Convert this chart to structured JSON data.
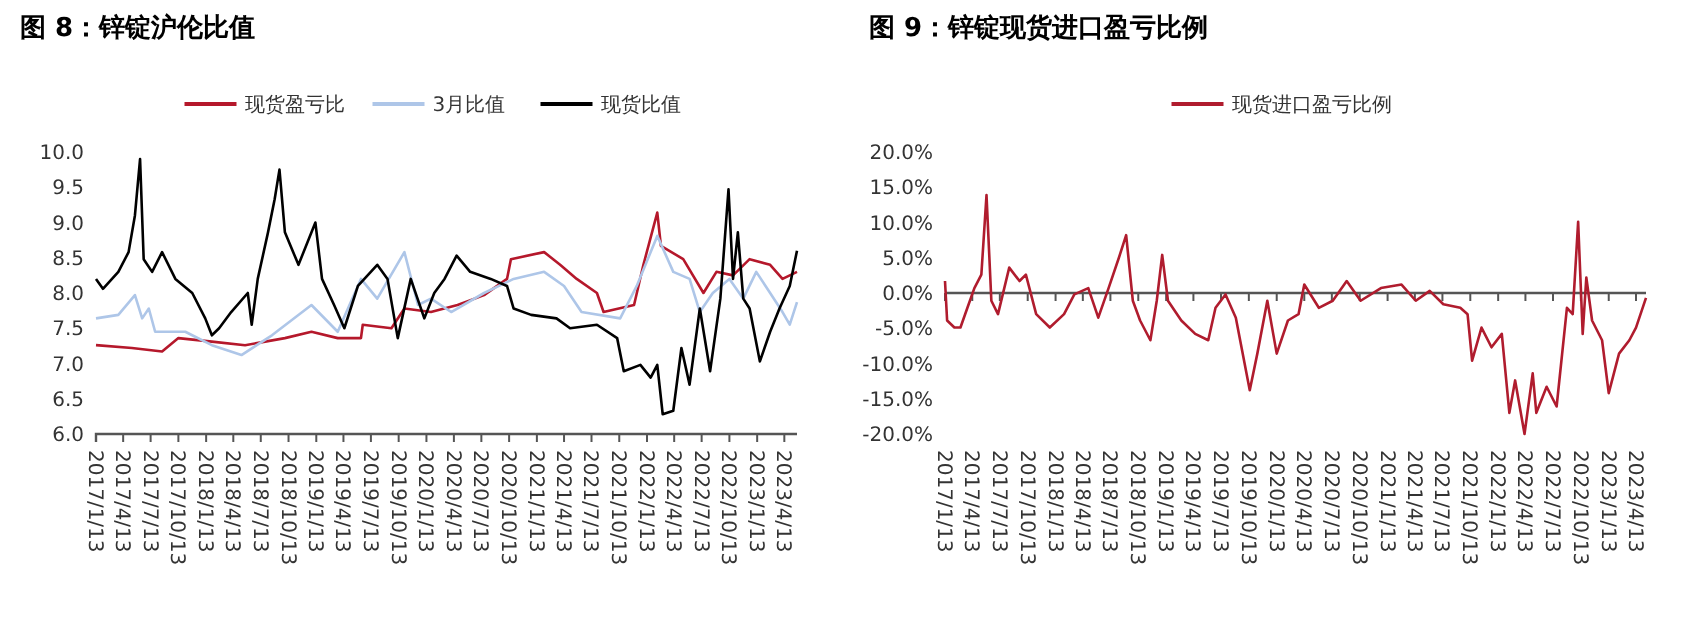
{
  "chart_data": [
    {
      "type": "line",
      "title": "图 8：锌锭沪伦比值",
      "legend": "top",
      "grid": false,
      "xlim": [
        "2017-01-13",
        "2023-05-25"
      ],
      "ylim": [
        6,
        10
      ],
      "yticks": [
        {
          "value": 6,
          "label": "6.0"
        },
        {
          "value": 6.5,
          "label": "6.5"
        },
        {
          "value": 7,
          "label": "7.0"
        },
        {
          "value": 7.5,
          "label": "7.5"
        },
        {
          "value": 8,
          "label": "8.0"
        },
        {
          "value": 8.5,
          "label": "8.5"
        },
        {
          "value": 9,
          "label": "9.0"
        },
        {
          "value": 9.5,
          "label": "9.5"
        },
        {
          "value": 10,
          "label": "10.0"
        }
      ],
      "xticks": [
        {
          "value": "2017-01-13",
          "label": "2017/1/13"
        },
        {
          "value": "2017-04-13",
          "label": "2017/4/13"
        },
        {
          "value": "2017-07-13",
          "label": "2017/7/13"
        },
        {
          "value": "2017-10-13",
          "label": "2017/10/13"
        },
        {
          "value": "2018-01-13",
          "label": "2018/1/13"
        },
        {
          "value": "2018-04-13",
          "label": "2018/4/13"
        },
        {
          "value": "2018-07-13",
          "label": "2018/7/13"
        },
        {
          "value": "2018-10-13",
          "label": "2018/10/13"
        },
        {
          "value": "2019-01-13",
          "label": "2019/1/13"
        },
        {
          "value": "2019-04-13",
          "label": "2019/4/13"
        },
        {
          "value": "2019-07-13",
          "label": "2019/7/13"
        },
        {
          "value": "2019-10-13",
          "label": "2019/10/13"
        },
        {
          "value": "2020-01-13",
          "label": "2020/1/13"
        },
        {
          "value": "2020-04-13",
          "label": "2020/4/13"
        },
        {
          "value": "2020-07-13",
          "label": "2020/7/13"
        },
        {
          "value": "2020-10-13",
          "label": "2020/10/13"
        },
        {
          "value": "2021-01-13",
          "label": "2021/1/13"
        },
        {
          "value": "2021-04-13",
          "label": "2021/4/13"
        },
        {
          "value": "2021-07-13",
          "label": "2021/7/13"
        },
        {
          "value": "2021-10-13",
          "label": "2021/10/13"
        },
        {
          "value": "2022-01-13",
          "label": "2022/1/13"
        },
        {
          "value": "2022-04-13",
          "label": "2022/4/13"
        },
        {
          "value": "2022-07-13",
          "label": "2022/7/13"
        },
        {
          "value": "2022-10-13",
          "label": "2022/10/13"
        },
        {
          "value": "2023-01-13",
          "label": "2023/1/13"
        },
        {
          "value": "2023-04-13",
          "label": "2023/4/13"
        }
      ],
      "series": [
        {
          "name": "现货盈亏比",
          "color": "#b5182b",
          "x": [
            "2017-01-13",
            "2017-05-12",
            "2017-08-20",
            "2017-10-13",
            "2018-02-01",
            "2018-05-22",
            "2018-10-01",
            "2018-12-28",
            "2019-03-25",
            "2019-06-10",
            "2019-06-16",
            "2019-09-19",
            "2019-11-01",
            "2020-01-28",
            "2020-04-25",
            "2020-07-22",
            "2020-10-06",
            "2020-10-19",
            "2021-02-06",
            "2021-03-31",
            "2021-05-25",
            "2021-07-31",
            "2021-08-22",
            "2021-12-01",
            "2022-01-01",
            "2022-02-16",
            "2022-02-28",
            "2022-05-13",
            "2022-07-19",
            "2022-08-31",
            "2022-10-25",
            "2022-12-19",
            "2023-02-25",
            "2023-04-07",
            "2023-05-25"
          ],
          "values": [
            7.26,
            7.22,
            7.17,
            7.36,
            7.31,
            7.26,
            7.36,
            7.45,
            7.36,
            7.36,
            7.55,
            7.5,
            7.78,
            7.73,
            7.83,
            7.97,
            8.2,
            8.48,
            8.58,
            8.4,
            8.2,
            8.0,
            7.73,
            7.83,
            8.4,
            9.14,
            8.67,
            8.48,
            8.0,
            8.3,
            8.25,
            8.48,
            8.4,
            8.2,
            8.3
          ]
        },
        {
          "name": "3月比值",
          "color": "#aec6e8",
          "x": [
            "2017-01-13",
            "2017-03-28",
            "2017-05-22",
            "2017-06-15",
            "2017-07-07",
            "2017-07-28",
            "2017-11-05",
            "2018-02-01",
            "2018-05-10",
            "2018-08-19",
            "2018-12-28",
            "2019-03-25",
            "2019-06-10",
            "2019-08-03",
            "2019-11-01",
            "2019-12-16",
            "2020-01-28",
            "2020-04-04",
            "2020-07-22",
            "2020-10-28",
            "2021-02-06",
            "2021-04-13",
            "2021-06-10",
            "2021-10-16",
            "2021-12-10",
            "2022-02-16",
            "2022-04-10",
            "2022-06-03",
            "2022-07-07",
            "2022-08-19",
            "2022-10-13",
            "2022-11-28",
            "2023-01-10",
            "2023-02-25",
            "2023-04-07",
            "2023-05-01",
            "2023-05-25"
          ],
          "values": [
            7.64,
            7.69,
            7.97,
            7.64,
            7.78,
            7.45,
            7.45,
            7.26,
            7.12,
            7.4,
            7.83,
            7.45,
            8.2,
            7.92,
            8.58,
            7.83,
            7.92,
            7.73,
            8.0,
            8.2,
            8.3,
            8.1,
            7.73,
            7.64,
            8.1,
            8.81,
            8.3,
            8.2,
            7.73,
            8.0,
            8.2,
            7.92,
            8.3,
            8.0,
            7.73,
            7.55,
            7.87
          ]
        },
        {
          "name": "现货比值",
          "color": "#000000",
          "x": [
            "2017-01-13",
            "2017-02-05",
            "2017-03-28",
            "2017-05-01",
            "2017-05-22",
            "2017-06-08",
            "2017-06-20",
            "2017-07-18",
            "2017-08-20",
            "2017-10-03",
            "2017-11-28",
            "2018-01-10",
            "2018-02-01",
            "2018-02-25",
            "2018-04-06",
            "2018-05-31",
            "2018-06-13",
            "2018-07-03",
            "2018-08-06",
            "2018-08-28",
            "2018-09-13",
            "2018-10-01",
            "2018-11-15",
            "2019-01-10",
            "2019-02-01",
            "2019-03-13",
            "2019-04-16",
            "2019-05-31",
            "2019-08-03",
            "2019-09-06",
            "2019-10-10",
            "2019-11-22",
            "2020-01-06",
            "2020-02-08",
            "2020-03-13",
            "2020-04-22",
            "2020-06-06",
            "2020-08-13",
            "2020-10-06",
            "2020-10-28",
            "2020-12-25",
            "2021-03-19",
            "2021-05-03",
            "2021-07-31",
            "2021-10-06",
            "2021-10-28",
            "2021-12-22",
            "2022-01-25",
            "2022-02-16",
            "2022-03-06",
            "2022-04-10",
            "2022-05-07",
            "2022-06-03",
            "2022-07-07",
            "2022-08-10",
            "2022-09-13",
            "2022-10-10",
            "2022-10-25",
            "2022-11-10",
            "2022-11-28",
            "2022-12-19",
            "2023-01-22",
            "2023-02-25",
            "2023-03-28",
            "2023-05-01",
            "2023-05-25"
          ],
          "values": [
            8.2,
            8.06,
            8.3,
            8.58,
            9.1,
            9.9,
            8.48,
            8.3,
            8.58,
            8.2,
            8.0,
            7.64,
            7.4,
            7.5,
            7.73,
            8.0,
            7.55,
            8.2,
            8.86,
            9.33,
            9.75,
            8.86,
            8.4,
            9.0,
            8.2,
            7.83,
            7.5,
            8.1,
            8.4,
            8.2,
            7.36,
            8.2,
            7.64,
            8.0,
            8.2,
            8.53,
            8.3,
            8.2,
            8.1,
            7.78,
            7.69,
            7.64,
            7.5,
            7.55,
            7.36,
            6.89,
            6.98,
            6.8,
            6.98,
            6.28,
            6.33,
            7.22,
            6.7,
            7.78,
            6.89,
            7.92,
            9.47,
            8.2,
            8.86,
            7.92,
            7.78,
            7.03,
            7.45,
            7.78,
            8.1,
            8.6
          ]
        }
      ]
    },
    {
      "type": "line",
      "title": "图 9：锌锭现货进口盈亏比例",
      "legend": "top",
      "grid": false,
      "ref_lines": [
        {
          "axis": "y",
          "value": 0,
          "color": "#555555"
        }
      ],
      "xlim": [
        "2017-01-13",
        "2023-05-16"
      ],
      "ylim": [
        -20,
        20
      ],
      "yticks": [
        {
          "value": -20,
          "label": "-20.0%"
        },
        {
          "value": -15,
          "label": "-15.0%"
        },
        {
          "value": -10,
          "label": "-10.0%"
        },
        {
          "value": -5,
          "label": "-5.0%"
        },
        {
          "value": 0,
          "label": "0.0%"
        },
        {
          "value": 5,
          "label": "5.0%"
        },
        {
          "value": 10,
          "label": "10.0%"
        },
        {
          "value": 15,
          "label": "15.0%"
        },
        {
          "value": 20,
          "label": "20.0%"
        }
      ],
      "xticks": [
        {
          "value": "2017-01-13",
          "label": "2017/1/13"
        },
        {
          "value": "2017-04-13",
          "label": "2017/4/13"
        },
        {
          "value": "2017-07-13",
          "label": "2017/7/13"
        },
        {
          "value": "2017-10-13",
          "label": "2017/10/13"
        },
        {
          "value": "2018-01-13",
          "label": "2018/1/13"
        },
        {
          "value": "2018-04-13",
          "label": "2018/4/13"
        },
        {
          "value": "2018-07-13",
          "label": "2018/7/13"
        },
        {
          "value": "2018-10-13",
          "label": "2018/10/13"
        },
        {
          "value": "2019-01-13",
          "label": "2019/1/13"
        },
        {
          "value": "2019-04-13",
          "label": "2019/4/13"
        },
        {
          "value": "2019-07-13",
          "label": "2019/7/13"
        },
        {
          "value": "2019-10-13",
          "label": "2019/10/13"
        },
        {
          "value": "2020-01-13",
          "label": "2020/1/13"
        },
        {
          "value": "2020-04-13",
          "label": "2020/4/13"
        },
        {
          "value": "2020-07-13",
          "label": "2020/7/13"
        },
        {
          "value": "2020-10-13",
          "label": "2020/10/13"
        },
        {
          "value": "2021-01-13",
          "label": "2021/1/13"
        },
        {
          "value": "2021-04-13",
          "label": "2021/4/13"
        },
        {
          "value": "2021-07-13",
          "label": "2021/7/13"
        },
        {
          "value": "2021-10-13",
          "label": "2021/10/13"
        },
        {
          "value": "2022-01-13",
          "label": "2022/1/13"
        },
        {
          "value": "2022-04-13",
          "label": "2022/4/13"
        },
        {
          "value": "2022-07-13",
          "label": "2022/7/13"
        },
        {
          "value": "2022-10-13",
          "label": "2022/10/13"
        },
        {
          "value": "2023-01-13",
          "label": "2023/1/13"
        },
        {
          "value": "2023-04-13",
          "label": "2023/4/13"
        }
      ],
      "series": [
        {
          "name": "现货进口盈亏比例",
          "color": "#b01c2e",
          "x": [
            "2017-01-13",
            "2017-01-20",
            "2017-02-13",
            "2017-03-05",
            "2017-03-28",
            "2017-04-20",
            "2017-05-13",
            "2017-05-30",
            "2017-06-15",
            "2017-07-07",
            "2017-08-13",
            "2017-09-16",
            "2017-10-07",
            "2017-11-10",
            "2017-12-25",
            "2018-02-10",
            "2018-03-16",
            "2018-05-01",
            "2018-06-03",
            "2018-07-07",
            "2018-08-10",
            "2018-09-03",
            "2018-09-25",
            "2018-10-19",
            "2018-11-22",
            "2018-12-13",
            "2018-12-31",
            "2019-01-19",
            "2019-03-04",
            "2019-04-19",
            "2019-06-01",
            "2019-06-25",
            "2019-07-28",
            "2019-08-31",
            "2019-10-16",
            "2019-11-10",
            "2019-12-13",
            "2020-01-13",
            "2020-02-19",
            "2020-03-25",
            "2020-04-13",
            "2020-05-31",
            "2020-07-16",
            "2020-08-31",
            "2020-10-16",
            "2020-12-22",
            "2021-02-28",
            "2021-04-16",
            "2021-06-01",
            "2021-07-16",
            "2021-09-10",
            "2021-10-04",
            "2021-10-19",
            "2021-11-19",
            "2021-12-22",
            "2022-01-25",
            "2022-02-19",
            "2022-03-10",
            "2022-04-10",
            "2022-05-07",
            "2022-05-19",
            "2022-06-22",
            "2022-07-25",
            "2022-08-28",
            "2022-09-16",
            "2022-10-04",
            "2022-10-19",
            "2022-10-31",
            "2022-11-19",
            "2022-12-22",
            "2023-01-13",
            "2023-02-16",
            "2023-03-22",
            "2023-04-13",
            "2023-05-16"
          ],
          "values": [
            1.7,
            -3.9,
            -4.9,
            -4.9,
            -2.1,
            0.7,
            2.6,
            13.9,
            -1.1,
            -3.0,
            3.6,
            1.7,
            2.6,
            -3.0,
            -4.9,
            -3.0,
            -0.2,
            0.7,
            -3.5,
            0.7,
            5.0,
            8.2,
            -1.1,
            -3.9,
            -6.7,
            -1.1,
            5.4,
            -1.1,
            -3.9,
            -5.8,
            -6.7,
            -2.1,
            -0.2,
            -3.5,
            -13.8,
            -8.6,
            -1.1,
            -8.6,
            -3.9,
            -3.0,
            1.2,
            -2.1,
            -1.1,
            1.7,
            -1.1,
            0.7,
            1.2,
            -1.1,
            0.3,
            -1.6,
            -2.1,
            -3.0,
            -9.6,
            -4.9,
            -7.7,
            -5.8,
            -17.0,
            -12.4,
            -20.0,
            -11.4,
            -17.0,
            -13.3,
            -16.1,
            -2.1,
            -3.0,
            10.1,
            -5.8,
            2.2,
            -3.9,
            -6.7,
            -14.2,
            -8.6,
            -6.7,
            -4.9,
            -0.7
          ]
        }
      ]
    }
  ]
}
